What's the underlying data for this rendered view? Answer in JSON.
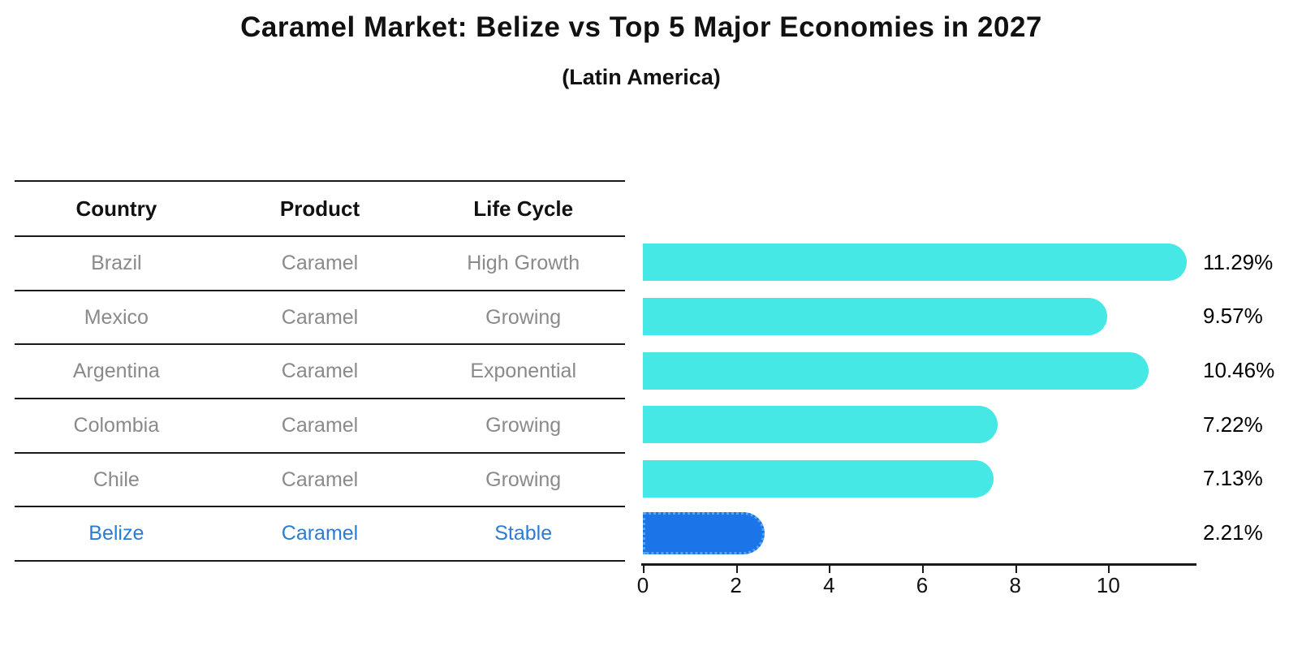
{
  "title": "Caramel Market: Belize vs Top 5 Major Economies in 2027",
  "subtitle": "(Latin America)",
  "table": {
    "headers": [
      "Country",
      "Product",
      "Life Cycle"
    ],
    "rows": [
      {
        "country": "Brazil",
        "product": "Caramel",
        "life_cycle": "High Growth",
        "highlight": false
      },
      {
        "country": "Mexico",
        "product": "Caramel",
        "life_cycle": "Growing",
        "highlight": false
      },
      {
        "country": "Argentina",
        "product": "Caramel",
        "life_cycle": "Exponential",
        "highlight": false
      },
      {
        "country": "Colombia",
        "product": "Caramel",
        "life_cycle": "Growing",
        "highlight": false
      },
      {
        "country": "Chile",
        "product": "Caramel",
        "life_cycle": "Growing",
        "highlight": false
      },
      {
        "country": "Belize",
        "product": "Caramel",
        "life_cycle": "Stable",
        "highlight": true
      }
    ]
  },
  "chart_data": {
    "type": "bar",
    "orientation": "horizontal",
    "title": "Caramel Market: Belize vs Top 5 Major Economies in 2027",
    "subtitle": "(Latin America)",
    "categories": [
      "Brazil",
      "Mexico",
      "Argentina",
      "Colombia",
      "Chile",
      "Belize"
    ],
    "values": [
      11.29,
      9.57,
      10.46,
      7.22,
      7.13,
      2.21
    ],
    "value_labels": [
      "11.29%",
      "9.57%",
      "10.46%",
      "7.22%",
      "7.13%",
      "2.21%"
    ],
    "highlight_index": 5,
    "x_tick_labels": [
      "0",
      "2",
      "4",
      "6",
      "8",
      "10"
    ],
    "x_tick_values": [
      0,
      2,
      4,
      6,
      8,
      10
    ],
    "xlim": [
      0,
      11.86
    ],
    "grid": false,
    "legend": false
  },
  "colors": {
    "background": "#ffffff",
    "bar": "#45e8e4",
    "highlight_bar": "#1b74e8",
    "highlight_bar_border": "#57a5f2",
    "highlight_text": "#2b7cd3",
    "row_text": "#8a8a8a",
    "heading_text": "#111111",
    "axis": "#1a1a1a",
    "value_label": "#000000"
  }
}
